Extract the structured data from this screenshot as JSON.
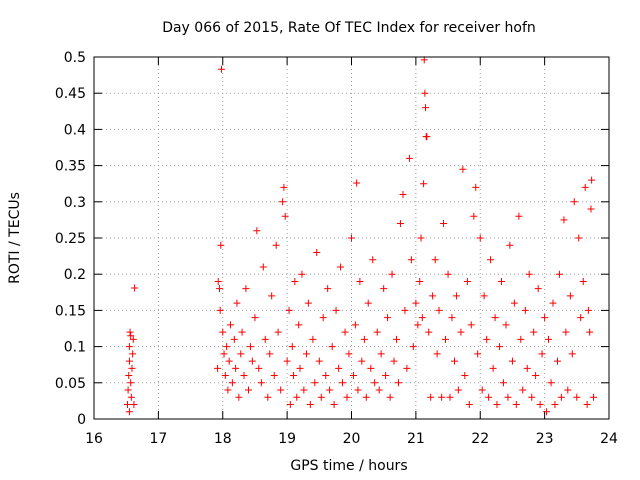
{
  "chart_data": {
    "type": "scatter",
    "title": "Day 066 of 2015, Rate Of TEC Index for receiver hofn",
    "xlabel": "GPS time / hours",
    "ylabel": "ROTI / TECUs",
    "xlim": [
      16,
      24
    ],
    "ylim": [
      0,
      0.5
    ],
    "xticks": [
      16,
      17,
      18,
      19,
      20,
      21,
      22,
      23,
      24
    ],
    "xtick_labels": [
      "16",
      "17",
      "18",
      "19",
      "20",
      "21",
      "22",
      "23",
      "24"
    ],
    "yticks": [
      0,
      0.05,
      0.1,
      0.15,
      0.2,
      0.25,
      0.3,
      0.35,
      0.4,
      0.45,
      0.5
    ],
    "ytick_labels": [
      "0",
      "0.05",
      "0.1",
      "0.15",
      "0.2",
      "0.25",
      "0.3",
      "0.35",
      "0.4",
      "0.45",
      "0.5"
    ],
    "grid": true,
    "marker": "+",
    "color": "#ff0000",
    "series": [
      {
        "name": "ROTI",
        "points": [
          [
            16.52,
            0.02
          ],
          [
            16.53,
            0.04
          ],
          [
            16.54,
            0.06
          ],
          [
            16.55,
            0.08
          ],
          [
            16.55,
            0.1
          ],
          [
            16.56,
            0.12
          ],
          [
            16.57,
            0.05
          ],
          [
            16.58,
            0.03
          ],
          [
            16.59,
            0.07
          ],
          [
            16.6,
            0.09
          ],
          [
            16.61,
            0.11
          ],
          [
            16.62,
            0.02
          ],
          [
            16.55,
            0.01
          ],
          [
            16.57,
            0.115
          ],
          [
            16.63,
            0.181
          ],
          [
            17.92,
            0.07
          ],
          [
            17.93,
            0.19
          ],
          [
            17.95,
            0.18
          ],
          [
            17.96,
            0.15
          ],
          [
            17.97,
            0.24
          ],
          [
            17.98,
            0.483
          ],
          [
            18.0,
            0.12
          ],
          [
            18.02,
            0.09
          ],
          [
            18.04,
            0.06
          ],
          [
            18.06,
            0.1
          ],
          [
            18.08,
            0.04
          ],
          [
            18.1,
            0.08
          ],
          [
            18.12,
            0.13
          ],
          [
            18.15,
            0.05
          ],
          [
            18.18,
            0.11
          ],
          [
            18.2,
            0.07
          ],
          [
            18.22,
            0.16
          ],
          [
            18.25,
            0.03
          ],
          [
            18.28,
            0.09
          ],
          [
            18.3,
            0.12
          ],
          [
            18.33,
            0.06
          ],
          [
            18.36,
            0.18
          ],
          [
            18.4,
            0.04
          ],
          [
            18.43,
            0.1
          ],
          [
            18.46,
            0.08
          ],
          [
            18.5,
            0.14
          ],
          [
            18.53,
            0.26
          ],
          [
            18.56,
            0.07
          ],
          [
            18.6,
            0.05
          ],
          [
            18.63,
            0.21
          ],
          [
            18.66,
            0.11
          ],
          [
            18.7,
            0.03
          ],
          [
            18.73,
            0.09
          ],
          [
            18.76,
            0.17
          ],
          [
            18.8,
            0.06
          ],
          [
            18.83,
            0.24
          ],
          [
            18.86,
            0.12
          ],
          [
            18.9,
            0.04
          ],
          [
            18.93,
            0.3
          ],
          [
            18.95,
            0.32
          ],
          [
            18.97,
            0.28
          ],
          [
            19.0,
            0.08
          ],
          [
            19.03,
            0.15
          ],
          [
            19.05,
            0.02
          ],
          [
            19.08,
            0.1
          ],
          [
            19.1,
            0.06
          ],
          [
            19.12,
            0.19
          ],
          [
            19.15,
            0.03
          ],
          [
            19.18,
            0.13
          ],
          [
            19.2,
            0.07
          ],
          [
            19.23,
            0.2
          ],
          [
            19.26,
            0.04
          ],
          [
            19.3,
            0.09
          ],
          [
            19.33,
            0.16
          ],
          [
            19.36,
            0.02
          ],
          [
            19.4,
            0.11
          ],
          [
            19.43,
            0.05
          ],
          [
            19.46,
            0.23
          ],
          [
            19.5,
            0.08
          ],
          [
            19.53,
            0.03
          ],
          [
            19.56,
            0.14
          ],
          [
            19.6,
            0.06
          ],
          [
            19.63,
            0.18
          ],
          [
            19.66,
            0.04
          ],
          [
            19.7,
            0.1
          ],
          [
            19.73,
            0.02
          ],
          [
            19.76,
            0.15
          ],
          [
            19.8,
            0.07
          ],
          [
            19.83,
            0.21
          ],
          [
            19.86,
            0.05
          ],
          [
            19.9,
            0.12
          ],
          [
            19.93,
            0.03
          ],
          [
            19.96,
            0.09
          ],
          [
            20.0,
            0.25
          ],
          [
            20.03,
            0.06
          ],
          [
            20.06,
            0.13
          ],
          [
            20.08,
            0.326
          ],
          [
            20.1,
            0.04
          ],
          [
            20.13,
            0.19
          ],
          [
            20.16,
            0.08
          ],
          [
            20.2,
            0.11
          ],
          [
            20.23,
            0.03
          ],
          [
            20.26,
            0.16
          ],
          [
            20.3,
            0.07
          ],
          [
            20.33,
            0.22
          ],
          [
            20.36,
            0.05
          ],
          [
            20.4,
            0.12
          ],
          [
            20.43,
            0.04
          ],
          [
            20.46,
            0.09
          ],
          [
            20.5,
            0.18
          ],
          [
            20.53,
            0.06
          ],
          [
            20.56,
            0.14
          ],
          [
            20.6,
            0.03
          ],
          [
            20.63,
            0.2
          ],
          [
            20.66,
            0.08
          ],
          [
            20.7,
            0.11
          ],
          [
            20.73,
            0.05
          ],
          [
            20.76,
            0.27
          ],
          [
            20.8,
            0.31
          ],
          [
            20.83,
            0.15
          ],
          [
            20.86,
            0.07
          ],
          [
            20.9,
            0.36
          ],
          [
            20.93,
            0.22
          ],
          [
            20.96,
            0.1
          ],
          [
            21.0,
            0.16
          ],
          [
            21.03,
            0.13
          ],
          [
            21.06,
            0.19
          ],
          [
            21.08,
            0.25
          ],
          [
            21.1,
            0.14
          ],
          [
            21.12,
            0.325
          ],
          [
            21.13,
            0.496
          ],
          [
            21.14,
            0.45
          ],
          [
            21.15,
            0.43
          ],
          [
            21.16,
            0.39
          ],
          [
            21.17,
            0.39
          ],
          [
            21.2,
            0.12
          ],
          [
            21.23,
            0.03
          ],
          [
            21.26,
            0.17
          ],
          [
            21.3,
            0.22
          ],
          [
            21.33,
            0.09
          ],
          [
            21.36,
            0.15
          ],
          [
            21.4,
            0.03
          ],
          [
            21.43,
            0.27
          ],
          [
            21.46,
            0.11
          ],
          [
            21.5,
            0.2
          ],
          [
            21.53,
            0.03
          ],
          [
            21.56,
            0.14
          ],
          [
            21.6,
            0.08
          ],
          [
            21.63,
            0.17
          ],
          [
            21.66,
            0.04
          ],
          [
            21.7,
            0.12
          ],
          [
            21.73,
            0.345
          ],
          [
            21.76,
            0.06
          ],
          [
            21.8,
            0.19
          ],
          [
            21.83,
            0.02
          ],
          [
            21.86,
            0.13
          ],
          [
            21.9,
            0.28
          ],
          [
            21.93,
            0.32
          ],
          [
            21.96,
            0.09
          ],
          [
            22.0,
            0.25
          ],
          [
            22.03,
            0.04
          ],
          [
            22.06,
            0.17
          ],
          [
            22.1,
            0.11
          ],
          [
            22.13,
            0.03
          ],
          [
            22.16,
            0.22
          ],
          [
            22.2,
            0.07
          ],
          [
            22.23,
            0.14
          ],
          [
            22.26,
            0.02
          ],
          [
            22.3,
            0.1
          ],
          [
            22.33,
            0.19
          ],
          [
            22.36,
            0.05
          ],
          [
            22.4,
            0.13
          ],
          [
            22.43,
            0.03
          ],
          [
            22.46,
            0.24
          ],
          [
            22.5,
            0.08
          ],
          [
            22.53,
            0.16
          ],
          [
            22.56,
            0.02
          ],
          [
            22.6,
            0.28
          ],
          [
            22.63,
            0.11
          ],
          [
            22.66,
            0.04
          ],
          [
            22.7,
            0.15
          ],
          [
            22.73,
            0.07
          ],
          [
            22.76,
            0.2
          ],
          [
            22.8,
            0.03
          ],
          [
            22.83,
            0.12
          ],
          [
            22.86,
            0.06
          ],
          [
            22.9,
            0.18
          ],
          [
            22.93,
            0.02
          ],
          [
            22.96,
            0.09
          ],
          [
            23.0,
            0.14
          ],
          [
            23.03,
            0.01
          ],
          [
            23.06,
            0.11
          ],
          [
            23.1,
            0.05
          ],
          [
            23.13,
            0.16
          ],
          [
            23.16,
            0.02
          ],
          [
            23.2,
            0.08
          ],
          [
            23.23,
            0.2
          ],
          [
            23.26,
            0.03
          ],
          [
            23.3,
            0.275
          ],
          [
            23.33,
            0.12
          ],
          [
            23.36,
            0.04
          ],
          [
            23.4,
            0.17
          ],
          [
            23.43,
            0.09
          ],
          [
            23.46,
            0.3
          ],
          [
            23.5,
            0.03
          ],
          [
            23.53,
            0.25
          ],
          [
            23.56,
            0.14
          ],
          [
            23.6,
            0.19
          ],
          [
            23.63,
            0.32
          ],
          [
            23.66,
            0.02
          ],
          [
            23.7,
            0.12
          ],
          [
            23.73,
            0.33
          ],
          [
            23.76,
            0.03
          ],
          [
            23.72,
            0.29
          ],
          [
            23.68,
            0.15
          ]
        ]
      }
    ]
  }
}
